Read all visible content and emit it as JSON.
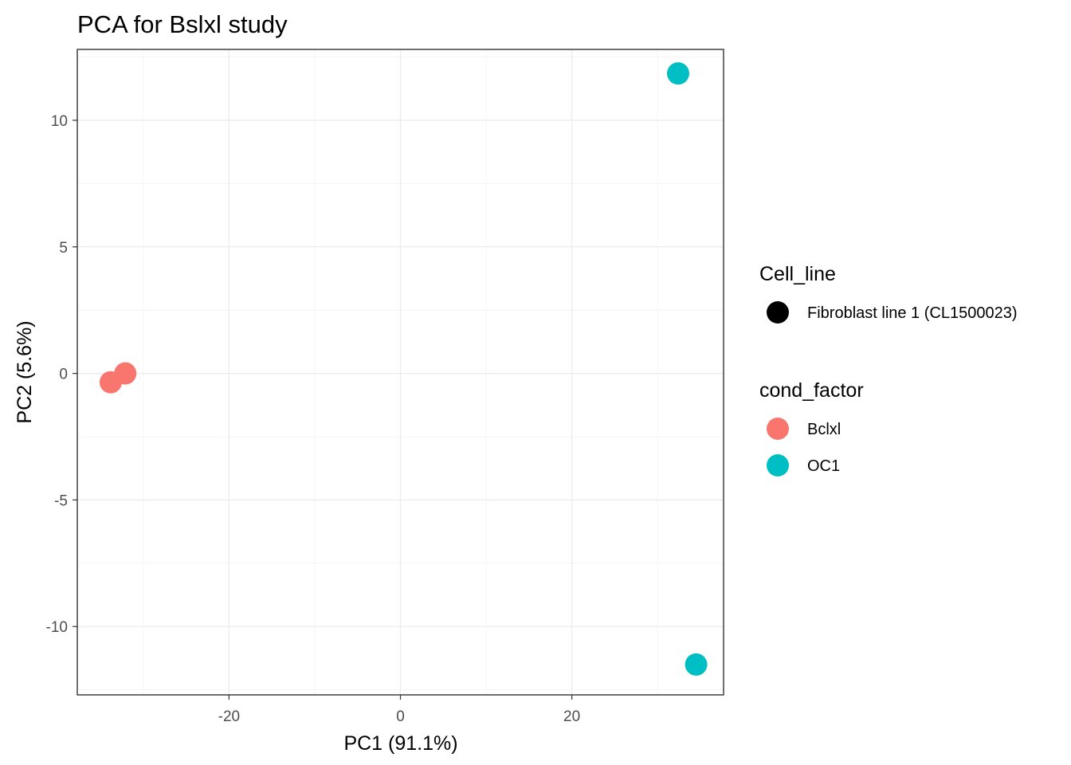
{
  "chart_data": {
    "type": "scatter",
    "title": "PCA for Bslxl study",
    "xlabel": "PC1 (91.1%)",
    "ylabel": "PC2 (5.6%)",
    "xlim": [
      -37.7,
      37.7
    ],
    "ylim": [
      -12.7,
      12.8
    ],
    "x_ticks": [
      -20,
      0,
      20
    ],
    "y_ticks": [
      -10,
      -5,
      0,
      5,
      10
    ],
    "x_tick_labels": [
      "-20",
      "0",
      "20"
    ],
    "y_tick_labels": [
      "-10",
      "-5",
      "0",
      "5",
      "10"
    ],
    "grid": true,
    "series": [
      {
        "name": "Bclxl",
        "color": "#F8766D",
        "points": [
          {
            "x": -33.8,
            "y": -0.35
          },
          {
            "x": -32.1,
            "y": 0.0
          }
        ]
      },
      {
        "name": "OC1",
        "color": "#00BFC4",
        "points": [
          {
            "x": 32.4,
            "y": 11.85
          },
          {
            "x": 34.5,
            "y": -11.5
          }
        ]
      }
    ],
    "legend": {
      "placement": "right",
      "groups": [
        {
          "title": "Cell_line",
          "items": [
            {
              "label": "Fibroblast line 1 (CL1500023)",
              "color": "#000000"
            }
          ]
        },
        {
          "title": "cond_factor",
          "items": [
            {
              "label": "Bclxl",
              "color": "#F8766D"
            },
            {
              "label": "OC1",
              "color": "#00BFC4"
            }
          ]
        }
      ]
    }
  }
}
